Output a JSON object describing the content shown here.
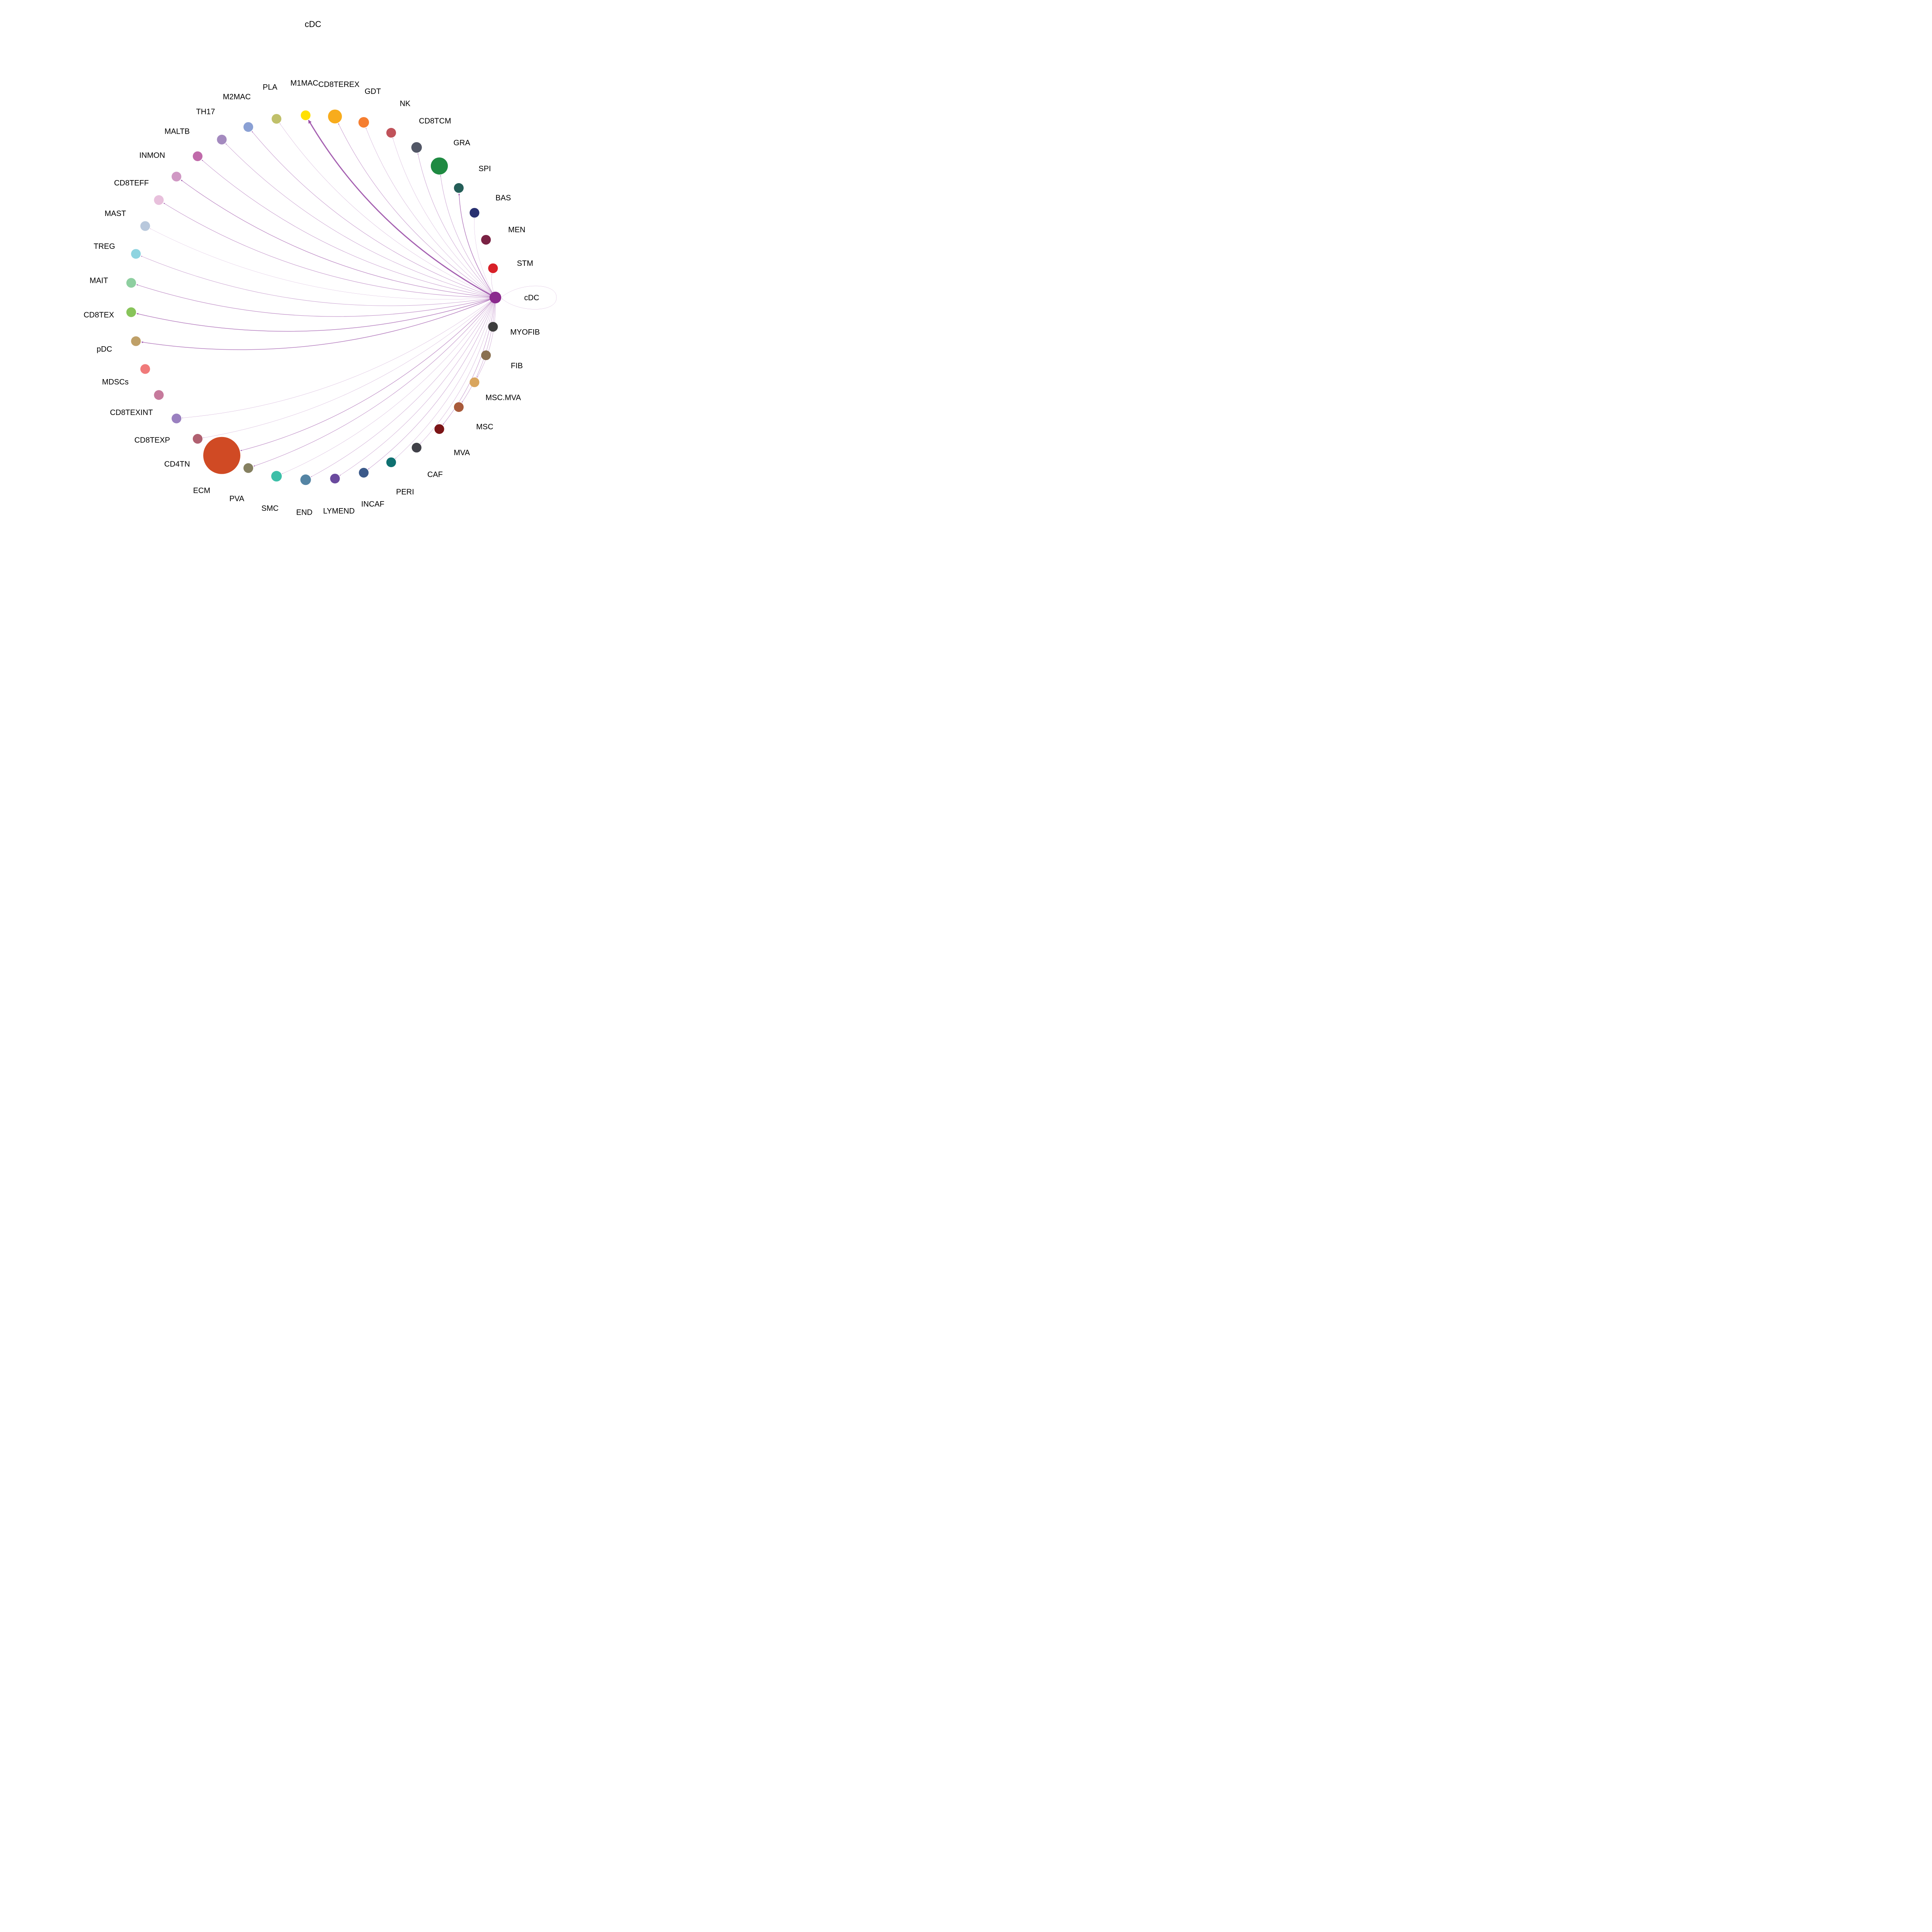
{
  "title": "cDC",
  "chart_data": {
    "type": "network",
    "title": "cDC",
    "source": "cDC",
    "edge_color": "#9b4fa8",
    "nodes": [
      {
        "name": "cDC",
        "color": "#8b2a8e",
        "size": 1.6
      },
      {
        "name": "MYOFIB",
        "color": "#3d3d3d",
        "size": 1.1
      },
      {
        "name": "FIB",
        "color": "#8a7050",
        "size": 1.1
      },
      {
        "name": "MSC.MVA",
        "color": "#d9a55e",
        "size": 1.1
      },
      {
        "name": "MSC",
        "color": "#a85a3a",
        "size": 1.1
      },
      {
        "name": "MVA",
        "color": "#7b1416",
        "size": 1.1
      },
      {
        "name": "CAF",
        "color": "#404048",
        "size": 1.1
      },
      {
        "name": "PERI",
        "color": "#0e7070",
        "size": 1.1
      },
      {
        "name": "INCAF",
        "color": "#3b5a8a",
        "size": 1.1
      },
      {
        "name": "LYMEND",
        "color": "#6a4a9e",
        "size": 1.1
      },
      {
        "name": "END",
        "color": "#5484a4",
        "size": 1.3
      },
      {
        "name": "SMC",
        "color": "#3dbfa8",
        "size": 1.3
      },
      {
        "name": "PVA",
        "color": "#858060",
        "size": 1.1
      },
      {
        "name": "ECM",
        "color": "#d04a24",
        "size": 16
      },
      {
        "name": "CD4TN",
        "color": "#b06070",
        "size": 1.1
      },
      {
        "name": "CD8TEXP",
        "color": "#9a80c0",
        "size": 1.1
      },
      {
        "name": "CD8TEXINT",
        "color": "#c67a9c",
        "size": 1.1
      },
      {
        "name": "MDSCs",
        "color": "#f07a7a",
        "size": 1.1
      },
      {
        "name": "pDC",
        "color": "#bfa068",
        "size": 1.1
      },
      {
        "name": "CD8TEX",
        "color": "#88c45a",
        "size": 1.1
      },
      {
        "name": "MAIT",
        "color": "#8ecfa0",
        "size": 1.1
      },
      {
        "name": "TREG",
        "color": "#8ed4e0",
        "size": 1.1
      },
      {
        "name": "MAST",
        "color": "#b8c8dc",
        "size": 1.1
      },
      {
        "name": "CD8TEFF",
        "color": "#e8c0dc",
        "size": 1.1
      },
      {
        "name": "INMON",
        "color": "#d098c4",
        "size": 1.1
      },
      {
        "name": "MALTB",
        "color": "#c06aaa",
        "size": 1.1
      },
      {
        "name": "TH17",
        "color": "#a48abf",
        "size": 1.1
      },
      {
        "name": "M2MAC",
        "color": "#8aa0d4",
        "size": 1.1
      },
      {
        "name": "PLA",
        "color": "#c0c06a",
        "size": 1.1
      },
      {
        "name": "M1MAC",
        "color": "#ffe000",
        "size": 1.1
      },
      {
        "name": "CD8TEREX",
        "color": "#f8ac1c",
        "size": 2.25
      },
      {
        "name": "GDT",
        "color": "#f57e30",
        "size": 1.3
      },
      {
        "name": "NK",
        "color": "#c0525a",
        "size": 1.1
      },
      {
        "name": "CD8TCM",
        "color": "#525766",
        "size": 1.3
      },
      {
        "name": "GRA",
        "color": "#1f8a42",
        "size": 3.4
      },
      {
        "name": "SPI",
        "color": "#245e58",
        "size": 1.1
      },
      {
        "name": "BAS",
        "color": "#283070",
        "size": 1.1
      },
      {
        "name": "MEN",
        "color": "#7a2244",
        "size": 1.1
      },
      {
        "name": "STM",
        "color": "#d82028",
        "size": 1.1
      }
    ],
    "edges": [
      {
        "target": "cDC",
        "weight": 0.5
      },
      {
        "target": "MSC.MVA",
        "weight": 0.8
      },
      {
        "target": "MSC",
        "weight": 0.9
      },
      {
        "target": "MVA",
        "weight": 1.0
      },
      {
        "target": "CAF",
        "weight": 0.7
      },
      {
        "target": "PERI",
        "weight": 0.7
      },
      {
        "target": "INCAF",
        "weight": 0.9
      },
      {
        "target": "LYMEND",
        "weight": 0.8
      },
      {
        "target": "END",
        "weight": 0.8
      },
      {
        "target": "SMC",
        "weight": 0.6
      },
      {
        "target": "PVA",
        "weight": 1.1
      },
      {
        "target": "ECM",
        "weight": 1.2
      },
      {
        "target": "CD4TN",
        "weight": 0.6
      },
      {
        "target": "CD8TEXP",
        "weight": 0.6
      },
      {
        "target": "pDC",
        "weight": 1.5
      },
      {
        "target": "CD8TEX",
        "weight": 1.5
      },
      {
        "target": "MAIT",
        "weight": 1.2
      },
      {
        "target": "TREG",
        "weight": 0.9
      },
      {
        "target": "MAST",
        "weight": 0.5
      },
      {
        "target": "CD8TEFF",
        "weight": 1.1
      },
      {
        "target": "INMON",
        "weight": 1.3
      },
      {
        "target": "MALTB",
        "weight": 1.0
      },
      {
        "target": "TH17",
        "weight": 0.9
      },
      {
        "target": "M2MAC",
        "weight": 1.0
      },
      {
        "target": "PLA",
        "weight": 0.6
      },
      {
        "target": "M1MAC",
        "weight": 3.0
      },
      {
        "target": "CD8TEREX",
        "weight": 1.0
      },
      {
        "target": "GDT",
        "weight": 0.7
      },
      {
        "target": "NK",
        "weight": 0.6
      },
      {
        "target": "CD8TCM",
        "weight": 0.9
      },
      {
        "target": "GRA",
        "weight": 0.9
      },
      {
        "target": "SPI",
        "weight": 1.5
      },
      {
        "target": "BAS",
        "weight": 0.5
      },
      {
        "target": "STM",
        "weight": 0.6
      }
    ]
  }
}
